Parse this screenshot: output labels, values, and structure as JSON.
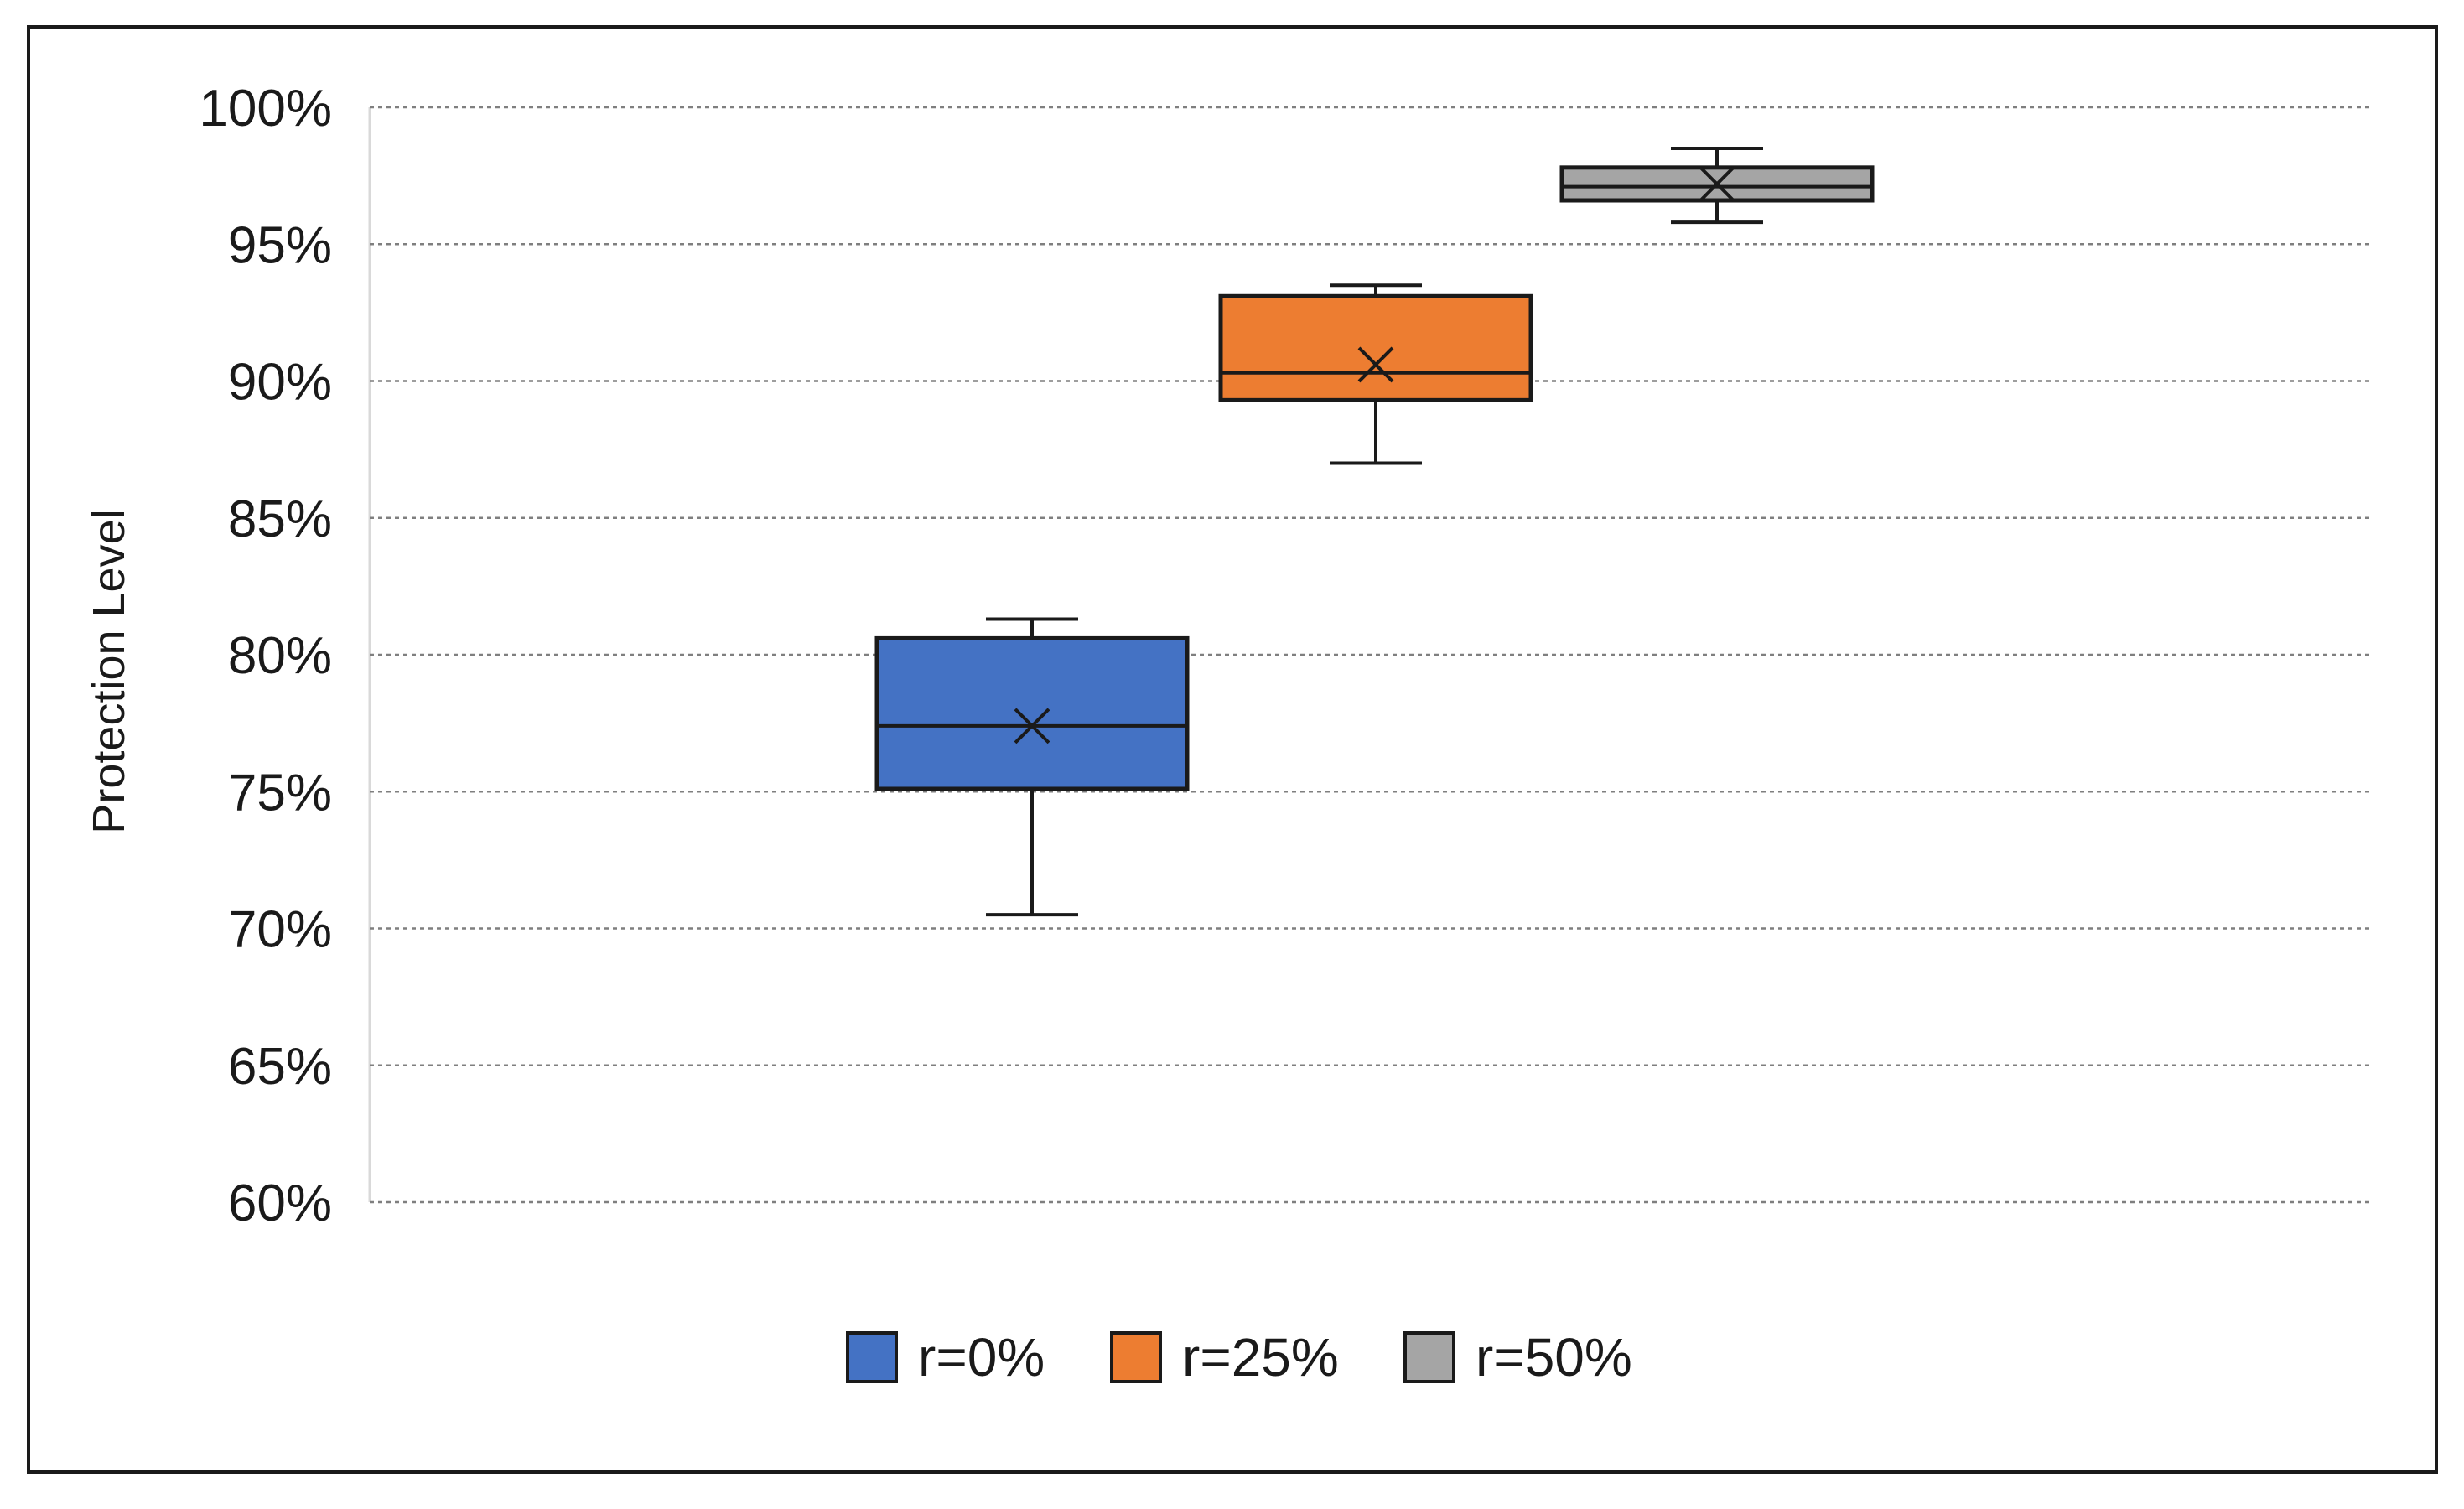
{
  "chart_data": {
    "type": "box",
    "title": "",
    "xlabel": "",
    "ylabel": "Protection Level",
    "ylim": [
      0.6,
      1.0
    ],
    "y_ticks": [
      {
        "value": 0.6,
        "label": "60%"
      },
      {
        "value": 0.65,
        "label": "65%"
      },
      {
        "value": 0.7,
        "label": "70%"
      },
      {
        "value": 0.75,
        "label": "75%"
      },
      {
        "value": 0.8,
        "label": "80%"
      },
      {
        "value": 0.85,
        "label": "85%"
      },
      {
        "value": 0.9,
        "label": "90%"
      },
      {
        "value": 0.95,
        "label": "95%"
      },
      {
        "value": 1.0,
        "label": "100%"
      }
    ],
    "grid": "horizontal dotted",
    "legend_position": "bottom",
    "series": [
      {
        "name": "r=0%",
        "color": "#4472C4",
        "min": 0.705,
        "q1": 0.751,
        "median": 0.774,
        "mean": 0.774,
        "q3": 0.806,
        "max": 0.813
      },
      {
        "name": "r=25%",
        "color": "#ED7D31",
        "min": 0.87,
        "q1": 0.893,
        "median": 0.903,
        "mean": 0.906,
        "q3": 0.931,
        "max": 0.935
      },
      {
        "name": "r=50%",
        "color": "#A5A5A5",
        "min": 0.958,
        "q1": 0.966,
        "median": 0.971,
        "mean": 0.972,
        "q3": 0.978,
        "max": 0.985
      }
    ]
  }
}
